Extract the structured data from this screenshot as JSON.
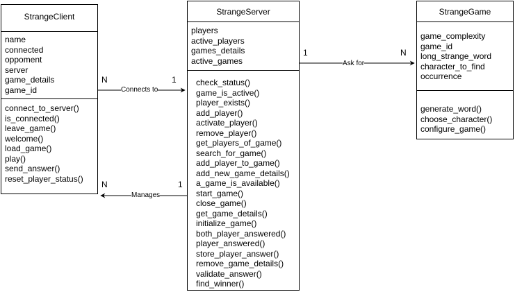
{
  "classes": {
    "client": {
      "title": "StrangeClient",
      "attributes": [
        "name",
        "connected",
        "oppoment",
        "server",
        "game_details",
        "game_id"
      ],
      "methods": [
        "connect_to_server()",
        "is_connected()",
        "leave_game()",
        "welcome()",
        "load_game()",
        "play()",
        "send_answer()",
        "reset_player_status()"
      ]
    },
    "server": {
      "title": "StrangeServer",
      "attributes": [
        "players",
        "active_players",
        "games_details",
        "active_games"
      ],
      "methods": [
        "check_status()",
        "game_is_active()",
        "player_exists()",
        "add_player()",
        "activate_player()",
        "remove_player()",
        "get_players_of_game()",
        "search_for_game()",
        "add_player_to_game()",
        "add_new_game_details()",
        "a_game_is_available()",
        "start_game()",
        "close_game()",
        "get_game_details()",
        "initialize_game()",
        "both_player_answered()",
        "player_answered()",
        "store_player_answer()",
        "remove_game_details()",
        "validate_answer()",
        "find_winner()"
      ]
    },
    "game": {
      "title": "StrangeGame",
      "attributes": [
        "game_complexity",
        "game_id",
        "long_strange_word",
        "character_to_find",
        "occurrence"
      ],
      "methods": [
        "generate_word()",
        "choose_character()",
        "configure_game()"
      ]
    }
  },
  "relations": {
    "connects": {
      "label": "Connects to",
      "source_mult": "N",
      "target_mult": "1"
    },
    "ask": {
      "label": "Ask for",
      "source_mult": "1",
      "target_mult": "N"
    },
    "manages": {
      "label": "Manages",
      "source_mult": "1",
      "target_mult": "N"
    }
  }
}
